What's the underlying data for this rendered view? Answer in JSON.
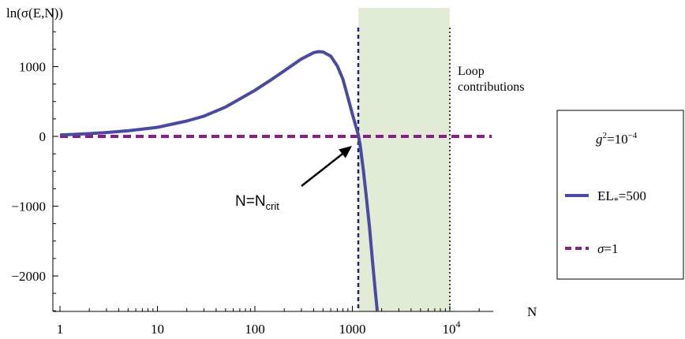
{
  "chart_data": {
    "type": "line",
    "ylabel": "ln(σ(E,N))",
    "xlabel": "N",
    "x_scale": "log",
    "xlim": [
      1,
      28000
    ],
    "ylim": [
      -2500,
      1500
    ],
    "x_ticks": [
      {
        "value": 1,
        "label": "1"
      },
      {
        "value": 10,
        "label": "10"
      },
      {
        "value": 100,
        "label": "100"
      },
      {
        "value": 1000,
        "label": "1000"
      },
      {
        "value": 10000,
        "label": "10",
        "exp": "4"
      }
    ],
    "y_ticks": [
      {
        "value": 1000,
        "label": "1000"
      },
      {
        "value": 0,
        "label": "0"
      },
      {
        "value": -1000,
        "label": "−1000"
      },
      {
        "value": -2000,
        "label": "−2000"
      }
    ],
    "series": [
      {
        "name": "EL*=500",
        "color": "#4a4aa0",
        "style": "solid",
        "x": [
          1,
          2,
          3,
          5,
          10,
          20,
          30,
          50,
          100,
          150,
          200,
          300,
          400,
          450,
          500,
          600,
          700,
          800,
          900,
          1000,
          1100,
          1150,
          1200,
          1300,
          1400,
          1500,
          1600,
          1700,
          1800
        ],
        "y": [
          20,
          40,
          55,
          80,
          130,
          220,
          290,
          420,
          660,
          820,
          940,
          1110,
          1200,
          1215,
          1210,
          1150,
          1010,
          820,
          560,
          320,
          120,
          20,
          -120,
          -500,
          -900,
          -1300,
          -1750,
          -2150,
          -2500
        ]
      },
      {
        "name": "σ=1",
        "color": "#8b1a8b",
        "style": "dashed",
        "x": [
          1,
          28000
        ],
        "y": [
          0,
          0
        ]
      }
    ],
    "vlines": [
      {
        "x": 1150,
        "style": "dashed",
        "color": "#202070"
      },
      {
        "x": 10000,
        "style": "dotted",
        "color": "#000000"
      }
    ],
    "shaded_region": {
      "x_from": 1150,
      "x_to": 10000,
      "color": "#e2ecd4",
      "label_lines": [
        "Loop",
        "contributions"
      ]
    },
    "annotation": {
      "text": "N=N",
      "subscript": "crit",
      "arrow_to_x": 1150,
      "arrow_to_y": 0
    },
    "legend": {
      "title_base": "g",
      "title_sup": "2",
      "title_rest": "=10",
      "title_exp": "−4",
      "items": [
        {
          "label": "EL",
          "label_sub": "*",
          "label_rest": "=500",
          "color": "#4a4aa0",
          "style": "solid"
        },
        {
          "label": "σ",
          "label_rest": "=1",
          "color": "#8b1a8b",
          "style": "dashed"
        }
      ],
      "placement": "right"
    }
  }
}
